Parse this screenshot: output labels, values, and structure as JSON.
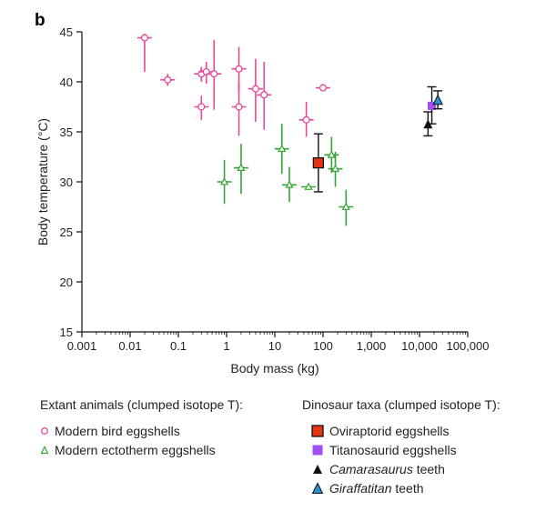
{
  "panel_label": "b",
  "colors": {
    "bird": "#e4499a",
    "ectotherm": "#33a532",
    "oviraptorid": "#e63312",
    "titanosaurid": "#a050f0",
    "camarasaurus": "#111111",
    "giraffatitan": "#2e8fd0",
    "errorbar": "#111111"
  },
  "chart_data": {
    "type": "scatter",
    "title": "",
    "xlabel": "Body mass (kg)",
    "ylabel": "Body temperature (°C)",
    "xscale": "log",
    "xlim": [
      0.001,
      100000
    ],
    "ylim": [
      15,
      45
    ],
    "xticks": [
      0.001,
      0.01,
      0.1,
      1,
      10,
      100,
      1000,
      10000,
      100000
    ],
    "xtick_labels": [
      "0.001",
      "0.01",
      "0.1",
      "1",
      "10",
      "100",
      "1,000",
      "10,000",
      "100,000"
    ],
    "yticks": [
      15,
      20,
      25,
      30,
      35,
      40,
      45
    ],
    "ytick_labels": [
      "15",
      "20",
      "25",
      "30",
      "35",
      "40",
      "45"
    ],
    "series": [
      {
        "name": "Modern bird eggshells",
        "group": "Extant animals",
        "marker": "open-circle",
        "color_key": "bird",
        "points": [
          {
            "x": 0.02,
            "y": 44.4,
            "ylo": 41.0,
            "yhi": 44.8
          },
          {
            "x": 0.06,
            "y": 40.2,
            "ylo": 39.6,
            "yhi": 40.8
          },
          {
            "x": 0.3,
            "y": 40.8,
            "ylo": 40.0,
            "yhi": 41.5
          },
          {
            "x": 0.3,
            "y": 37.5,
            "ylo": 36.2,
            "yhi": 38.6
          },
          {
            "x": 0.38,
            "y": 41.0,
            "ylo": 39.8,
            "yhi": 42.0
          },
          {
            "x": 0.55,
            "y": 40.8,
            "ylo": 37.2,
            "yhi": 44.2
          },
          {
            "x": 1.8,
            "y": 41.3,
            "ylo": 39.0,
            "yhi": 43.5
          },
          {
            "x": 1.8,
            "y": 37.5,
            "ylo": 34.6,
            "yhi": 40.0
          },
          {
            "x": 4.0,
            "y": 39.3,
            "ylo": 36.0,
            "yhi": 42.3
          },
          {
            "x": 6.0,
            "y": 38.7,
            "ylo": 35.2,
            "yhi": 42.0
          },
          {
            "x": 45,
            "y": 36.2,
            "ylo": 34.5,
            "yhi": 38.0
          },
          {
            "x": 100,
            "y": 39.4,
            "ylo": 39.1,
            "yhi": 39.7
          }
        ]
      },
      {
        "name": "Modern ectotherm eggshells",
        "group": "Extant animals",
        "marker": "open-triangle",
        "color_key": "ectotherm",
        "points": [
          {
            "x": 0.9,
            "y": 30.0,
            "ylo": 27.8,
            "yhi": 32.2
          },
          {
            "x": 2.0,
            "y": 31.4,
            "ylo": 28.8,
            "yhi": 33.8
          },
          {
            "x": 14,
            "y": 33.3,
            "ylo": 30.8,
            "yhi": 35.8
          },
          {
            "x": 20,
            "y": 29.7,
            "ylo": 28.0,
            "yhi": 31.5
          },
          {
            "x": 50,
            "y": 29.5,
            "ylo": 29.3,
            "yhi": 29.7
          },
          {
            "x": 150,
            "y": 32.7,
            "ylo": 30.9,
            "yhi": 34.5
          },
          {
            "x": 180,
            "y": 31.3,
            "ylo": 29.5,
            "yhi": 33.0
          },
          {
            "x": 300,
            "y": 27.5,
            "ylo": 25.6,
            "yhi": 29.2
          }
        ]
      },
      {
        "name": "Oviraptorid eggshells",
        "group": "Dinosaur taxa",
        "marker": "filled-square",
        "color_key": "oviraptorid",
        "points": [
          {
            "x": 80,
            "y": 31.9,
            "ylo": 29.0,
            "yhi": 34.8
          }
        ]
      },
      {
        "name": "Titanosaurid eggshells",
        "group": "Dinosaur taxa",
        "marker": "filled-square",
        "color_key": "titanosaurid",
        "points": [
          {
            "x": 18000,
            "y": 37.6,
            "ylo": 35.8,
            "yhi": 39.5
          }
        ]
      },
      {
        "name": "Camarasaurus teeth",
        "group": "Dinosaur taxa",
        "marker": "filled-triangle",
        "color_key": "camarasaurus",
        "points": [
          {
            "x": 15000,
            "y": 35.8,
            "ylo": 34.6,
            "yhi": 37.0
          }
        ]
      },
      {
        "name": "Giraffatitan teeth",
        "group": "Dinosaur taxa",
        "marker": "filled-triangle",
        "color_key": "giraffatitan",
        "points": [
          {
            "x": 24000,
            "y": 38.2,
            "ylo": 37.3,
            "yhi": 39.1
          }
        ]
      }
    ]
  },
  "legend": {
    "extant": {
      "heading": "Extant animals (clumped isotope T):",
      "items": [
        {
          "label": "Modern bird eggshells",
          "marker": "open-circle",
          "color_key": "bird"
        },
        {
          "label": "Modern ectotherm eggshells",
          "marker": "open-triangle",
          "color_key": "ectotherm"
        }
      ]
    },
    "dinosaur": {
      "heading": "Dinosaur taxa (clumped isotope T):",
      "items": [
        {
          "label": "Oviraptorid eggshells",
          "marker": "filled-square",
          "color_key": "oviraptorid"
        },
        {
          "label": "Titanosaurid eggshells",
          "marker": "filled-square",
          "color_key": "titanosaurid"
        },
        {
          "label_italic": "Camarasaurus",
          "label_rest": " teeth",
          "marker": "filled-triangle",
          "color_key": "camarasaurus"
        },
        {
          "label_italic": "Giraffatitan",
          "label_rest": " teeth",
          "marker": "filled-triangle",
          "color_key": "giraffatitan"
        }
      ]
    }
  }
}
